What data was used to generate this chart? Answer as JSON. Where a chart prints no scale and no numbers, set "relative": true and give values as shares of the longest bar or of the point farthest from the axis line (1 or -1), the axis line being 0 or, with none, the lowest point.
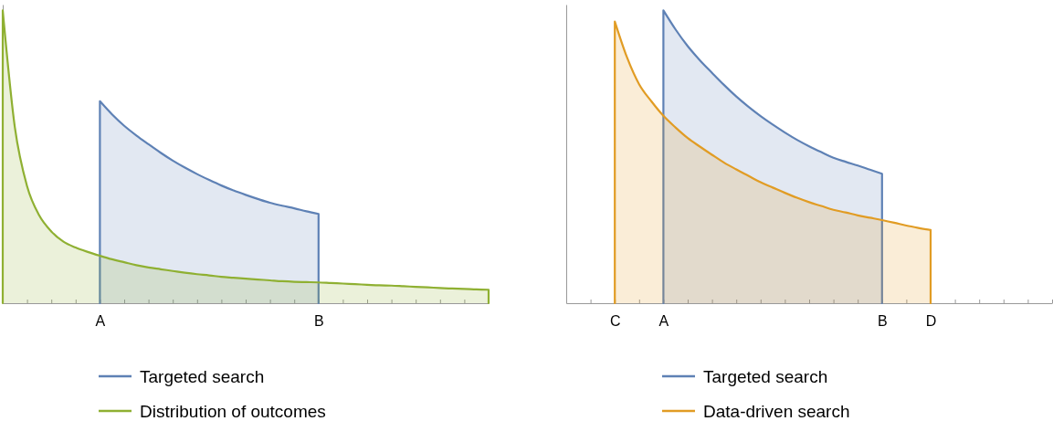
{
  "chart_data": [
    {
      "type": "area",
      "relative": true,
      "legend": "bottom",
      "categories": [
        null,
        null,
        null,
        null,
        null,
        null,
        null,
        null,
        "A",
        null,
        null,
        null,
        null,
        null,
        null,
        null,
        null,
        null,
        null,
        null,
        null,
        null,
        null,
        null,
        null,
        null,
        "B",
        null,
        null,
        null,
        null,
        null,
        null,
        null,
        null,
        null,
        null,
        null,
        null,
        null,
        null
      ],
      "series": [
        {
          "name": "Targeted search",
          "color": "#5e81b5",
          "values": [
            null,
            null,
            null,
            null,
            null,
            null,
            null,
            null,
            0.69,
            0.645,
            0.606,
            0.573,
            0.543,
            0.514,
            0.487,
            0.463,
            0.441,
            0.421,
            0.402,
            0.385,
            0.37,
            0.356,
            0.343,
            0.333,
            0.324,
            0.314,
            0.305,
            null,
            null,
            null,
            null,
            null,
            null,
            null,
            null,
            null,
            null,
            null,
            null,
            null,
            null
          ]
        },
        {
          "name": "Distribution of outcomes",
          "color": "#8fb032",
          "values": [
            1,
            0.6,
            0.4,
            0.3,
            0.245,
            0.21,
            0.19,
            0.175,
            0.162,
            0.15,
            0.14,
            0.13,
            0.122,
            0.116,
            0.11,
            0.104,
            0.099,
            0.095,
            0.09,
            0.087,
            0.084,
            0.081,
            0.078,
            0.075,
            0.073,
            0.072,
            0.071,
            0.069,
            0.067,
            0.065,
            0.063,
            0.061,
            0.06,
            0.058,
            0.056,
            0.054,
            0.052,
            0.05,
            0.049,
            0.047,
            0.046
          ]
        }
      ]
    },
    {
      "type": "area",
      "relative": true,
      "legend": "bottom",
      "categories": [
        null,
        null,
        null,
        null,
        "C",
        null,
        null,
        null,
        "A",
        null,
        null,
        null,
        null,
        null,
        null,
        null,
        null,
        null,
        null,
        null,
        null,
        null,
        null,
        null,
        null,
        null,
        "B",
        null,
        null,
        null,
        "D",
        null,
        null,
        null,
        null,
        null,
        null,
        null,
        null,
        null,
        null
      ],
      "series": [
        {
          "name": "Targeted search",
          "color": "#5e81b5",
          "values": [
            null,
            null,
            null,
            null,
            null,
            null,
            null,
            null,
            1,
            0.935,
            0.878,
            0.83,
            0.787,
            0.745,
            0.706,
            0.671,
            0.639,
            0.61,
            0.583,
            0.558,
            0.536,
            0.516,
            0.497,
            0.483,
            0.47,
            0.456,
            0.442,
            null,
            null,
            null,
            null,
            null,
            null,
            null,
            null,
            null,
            null,
            null,
            null,
            null,
            null
          ]
        },
        {
          "name": "Data-driven search",
          "color": "#e19c24",
          "values": [
            null,
            null,
            null,
            null,
            0.962,
            0.84,
            0.748,
            0.69,
            0.64,
            0.6,
            0.564,
            0.535,
            0.507,
            0.48,
            0.457,
            0.435,
            0.413,
            0.395,
            0.377,
            0.36,
            0.345,
            0.332,
            0.319,
            0.31,
            0.3,
            0.292,
            0.284,
            0.275,
            0.265,
            0.257,
            0.25,
            null,
            null,
            null,
            null,
            null,
            null,
            null,
            null,
            null,
            null
          ]
        }
      ]
    }
  ]
}
